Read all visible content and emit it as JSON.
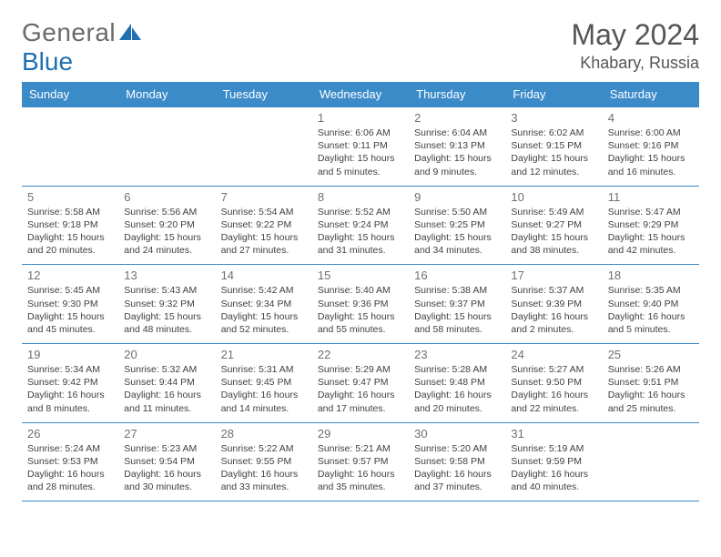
{
  "brand": {
    "name": "General",
    "accent": "Blue"
  },
  "title": "May 2024",
  "location": "Khabary, Russia",
  "colors": {
    "header_bg": "#3b8bc9",
    "header_text": "#ffffff",
    "border": "#3b8bc9",
    "text": "#404040",
    "muted": "#707070",
    "brand_blue": "#1f6fb2"
  },
  "weekdays": [
    "Sunday",
    "Monday",
    "Tuesday",
    "Wednesday",
    "Thursday",
    "Friday",
    "Saturday"
  ],
  "weeks": [
    [
      null,
      null,
      null,
      {
        "n": "1",
        "sr": "6:06 AM",
        "ss": "9:11 PM",
        "dl": "15 hours and 5 minutes."
      },
      {
        "n": "2",
        "sr": "6:04 AM",
        "ss": "9:13 PM",
        "dl": "15 hours and 9 minutes."
      },
      {
        "n": "3",
        "sr": "6:02 AM",
        "ss": "9:15 PM",
        "dl": "15 hours and 12 minutes."
      },
      {
        "n": "4",
        "sr": "6:00 AM",
        "ss": "9:16 PM",
        "dl": "15 hours and 16 minutes."
      }
    ],
    [
      {
        "n": "5",
        "sr": "5:58 AM",
        "ss": "9:18 PM",
        "dl": "15 hours and 20 minutes."
      },
      {
        "n": "6",
        "sr": "5:56 AM",
        "ss": "9:20 PM",
        "dl": "15 hours and 24 minutes."
      },
      {
        "n": "7",
        "sr": "5:54 AM",
        "ss": "9:22 PM",
        "dl": "15 hours and 27 minutes."
      },
      {
        "n": "8",
        "sr": "5:52 AM",
        "ss": "9:24 PM",
        "dl": "15 hours and 31 minutes."
      },
      {
        "n": "9",
        "sr": "5:50 AM",
        "ss": "9:25 PM",
        "dl": "15 hours and 34 minutes."
      },
      {
        "n": "10",
        "sr": "5:49 AM",
        "ss": "9:27 PM",
        "dl": "15 hours and 38 minutes."
      },
      {
        "n": "11",
        "sr": "5:47 AM",
        "ss": "9:29 PM",
        "dl": "15 hours and 42 minutes."
      }
    ],
    [
      {
        "n": "12",
        "sr": "5:45 AM",
        "ss": "9:30 PM",
        "dl": "15 hours and 45 minutes."
      },
      {
        "n": "13",
        "sr": "5:43 AM",
        "ss": "9:32 PM",
        "dl": "15 hours and 48 minutes."
      },
      {
        "n": "14",
        "sr": "5:42 AM",
        "ss": "9:34 PM",
        "dl": "15 hours and 52 minutes."
      },
      {
        "n": "15",
        "sr": "5:40 AM",
        "ss": "9:36 PM",
        "dl": "15 hours and 55 minutes."
      },
      {
        "n": "16",
        "sr": "5:38 AM",
        "ss": "9:37 PM",
        "dl": "15 hours and 58 minutes."
      },
      {
        "n": "17",
        "sr": "5:37 AM",
        "ss": "9:39 PM",
        "dl": "16 hours and 2 minutes."
      },
      {
        "n": "18",
        "sr": "5:35 AM",
        "ss": "9:40 PM",
        "dl": "16 hours and 5 minutes."
      }
    ],
    [
      {
        "n": "19",
        "sr": "5:34 AM",
        "ss": "9:42 PM",
        "dl": "16 hours and 8 minutes."
      },
      {
        "n": "20",
        "sr": "5:32 AM",
        "ss": "9:44 PM",
        "dl": "16 hours and 11 minutes."
      },
      {
        "n": "21",
        "sr": "5:31 AM",
        "ss": "9:45 PM",
        "dl": "16 hours and 14 minutes."
      },
      {
        "n": "22",
        "sr": "5:29 AM",
        "ss": "9:47 PM",
        "dl": "16 hours and 17 minutes."
      },
      {
        "n": "23",
        "sr": "5:28 AM",
        "ss": "9:48 PM",
        "dl": "16 hours and 20 minutes."
      },
      {
        "n": "24",
        "sr": "5:27 AM",
        "ss": "9:50 PM",
        "dl": "16 hours and 22 minutes."
      },
      {
        "n": "25",
        "sr": "5:26 AM",
        "ss": "9:51 PM",
        "dl": "16 hours and 25 minutes."
      }
    ],
    [
      {
        "n": "26",
        "sr": "5:24 AM",
        "ss": "9:53 PM",
        "dl": "16 hours and 28 minutes."
      },
      {
        "n": "27",
        "sr": "5:23 AM",
        "ss": "9:54 PM",
        "dl": "16 hours and 30 minutes."
      },
      {
        "n": "28",
        "sr": "5:22 AM",
        "ss": "9:55 PM",
        "dl": "16 hours and 33 minutes."
      },
      {
        "n": "29",
        "sr": "5:21 AM",
        "ss": "9:57 PM",
        "dl": "16 hours and 35 minutes."
      },
      {
        "n": "30",
        "sr": "5:20 AM",
        "ss": "9:58 PM",
        "dl": "16 hours and 37 minutes."
      },
      {
        "n": "31",
        "sr": "5:19 AM",
        "ss": "9:59 PM",
        "dl": "16 hours and 40 minutes."
      },
      null
    ]
  ],
  "labels": {
    "sunrise": "Sunrise:",
    "sunset": "Sunset:",
    "daylight": "Daylight:"
  }
}
